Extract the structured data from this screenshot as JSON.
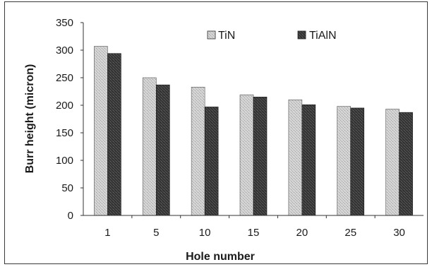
{
  "chart_data": {
    "type": "bar",
    "title": "",
    "xlabel": "Hole number",
    "ylabel": "Burr height (micron)",
    "categories": [
      "1",
      "5",
      "10",
      "15",
      "20",
      "25",
      "30"
    ],
    "series": [
      {
        "name": "TiN",
        "values": [
          307,
          250,
          233,
          219,
          210,
          198,
          193
        ],
        "color": "#c9c9c9"
      },
      {
        "name": "TiAlN",
        "values": [
          294,
          237,
          197,
          215,
          201,
          195,
          187
        ],
        "color": "#3f3f3f"
      }
    ],
    "ylim": [
      0,
      350
    ],
    "yticks": [
      "0",
      "50",
      "100",
      "150",
      "200",
      "250",
      "300",
      "350"
    ],
    "grid": false,
    "legend_position": "top-right"
  }
}
